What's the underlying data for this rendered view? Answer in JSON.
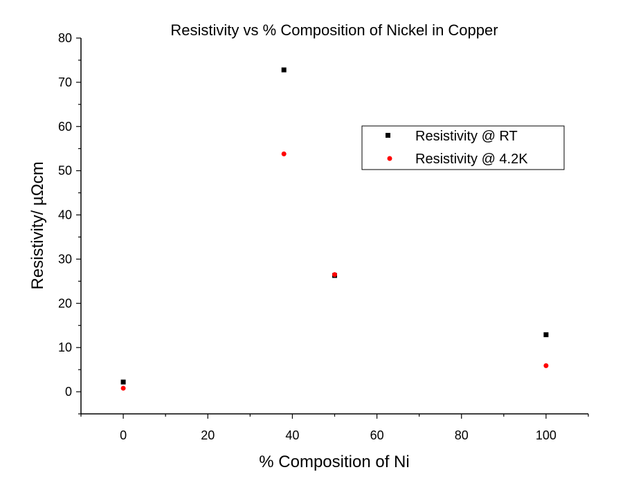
{
  "chart_data": {
    "type": "scatter",
    "title": "Resistivity vs % Composition of Nickel in Copper",
    "xlabel": "% Composition of Ni",
    "ylabel": "Resistivity/ µΩcm",
    "xlim": [
      -10,
      110
    ],
    "ylim": [
      -5,
      80
    ],
    "xticks": [
      "0",
      "20",
      "40",
      "60",
      "80",
      "100"
    ],
    "yticks": [
      "0",
      "10",
      "20",
      "30",
      "40",
      "50",
      "60",
      "70",
      "80"
    ],
    "grid": false,
    "legend_position": "upper-right",
    "series": [
      {
        "name": "Resistivity @ RT",
        "marker": "square",
        "color": "#000000",
        "x": [
          0,
          38,
          50,
          100
        ],
        "y": [
          2.2,
          72.8,
          26.3,
          12.9
        ]
      },
      {
        "name": "Resistivity @ 4.2K",
        "marker": "circle",
        "color": "#ff0000",
        "x": [
          0,
          38,
          50,
          100
        ],
        "y": [
          0.8,
          53.8,
          26.5,
          5.9
        ]
      }
    ]
  }
}
